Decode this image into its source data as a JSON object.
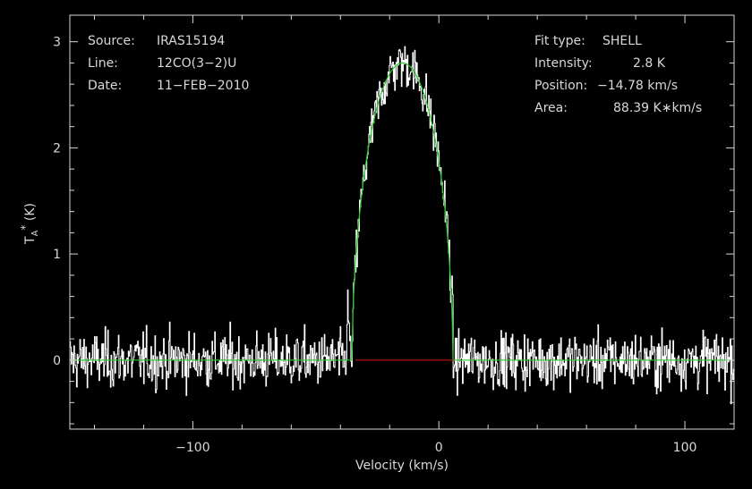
{
  "chart_data": {
    "type": "line",
    "xlabel": "Velocity (km/s)",
    "ylabel": "T_A* (K)",
    "xlim": [
      -150,
      120
    ],
    "ylim": [
      -0.65,
      3.25
    ],
    "xticks": [
      -100,
      0,
      100
    ],
    "xtick_labels": [
      "−100",
      "0",
      "100"
    ],
    "yticks": [
      0,
      1,
      2,
      3
    ],
    "ytick_labels": [
      "0",
      "1",
      "2",
      "3"
    ],
    "info_left": [
      {
        "key": "Source:",
        "value": "IRAS15194"
      },
      {
        "key": "Line:",
        "value": "12CO(3−2)U"
      },
      {
        "key": "Date:",
        "value": "11−FEB−2010"
      }
    ],
    "info_right": [
      {
        "key": "Fit type:",
        "value": "SHELL"
      },
      {
        "key": "Intensity:",
        "value": "2.8 K"
      },
      {
        "key": "Position:",
        "value": "−14.78 km/s"
      },
      {
        "key": "Area:",
        "value": "88.39 K∗km/s"
      }
    ],
    "series": [
      {
        "name": "Observed spectrum",
        "color": "#ffffff",
        "description_values": "noise about 0 outside line; emission between about -34 and 6 km/s peaking near 3.0 K at about -16 km/s",
        "noise_sigma": 0.13
      },
      {
        "name": "SHELL fit",
        "color": "#22cc22",
        "center": -14.78,
        "peak": 2.8,
        "half_width": 20.5
      },
      {
        "name": "Baseline",
        "color": "#cc1111",
        "x": [
          -34,
          6
        ],
        "y": [
          0,
          0
        ]
      }
    ]
  }
}
